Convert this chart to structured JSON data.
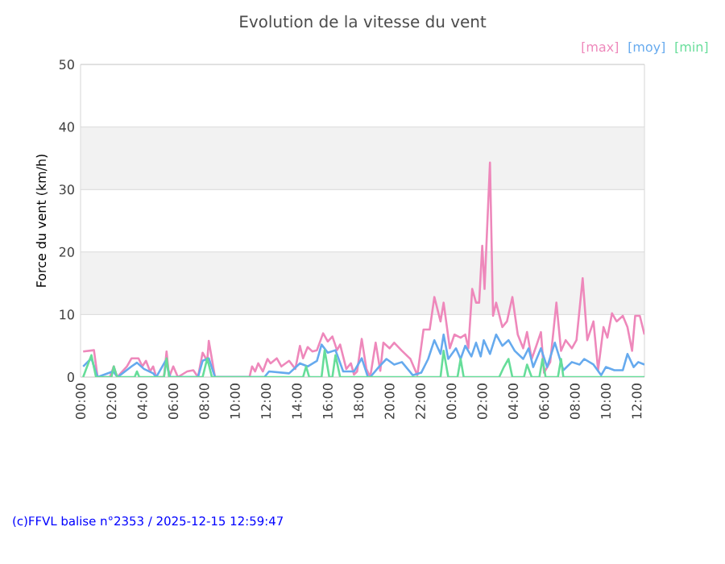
{
  "chart_data": {
    "type": "line",
    "title": "Evolution de la vitesse du vent",
    "ylabel": "Force du vent (km/h)",
    "annotations": [
      "(c)FFVL balise n°2353 / 2025-12-15 12:59:47"
    ],
    "xlim": [
      "2025-12-14T00:00",
      "2025-12-15T12:30"
    ],
    "ylim": [
      0,
      50
    ],
    "yticks": [
      0,
      10,
      20,
      30,
      40,
      50
    ],
    "xticks": [
      {
        "value": "2025-12-14T00:00",
        "label": "00:00"
      },
      {
        "value": "2025-12-14T02:00",
        "label": "02:00"
      },
      {
        "value": "2025-12-14T04:00",
        "label": "04:00"
      },
      {
        "value": "2025-12-14T06:00",
        "label": "06:00"
      },
      {
        "value": "2025-12-14T08:00",
        "label": "08:00"
      },
      {
        "value": "2025-12-14T10:00",
        "label": "10:00"
      },
      {
        "value": "2025-12-14T12:00",
        "label": "12:00"
      },
      {
        "value": "2025-12-14T14:00",
        "label": "14:00"
      },
      {
        "value": "2025-12-14T16:00",
        "label": "16:00"
      },
      {
        "value": "2025-12-14T18:00",
        "label": "18:00"
      },
      {
        "value": "2025-12-14T20:00",
        "label": "20:00"
      },
      {
        "value": "2025-12-14T22:00",
        "label": "22:00"
      },
      {
        "value": "2025-12-15T00:00",
        "label": "00:00"
      },
      {
        "value": "2025-12-15T02:00",
        "label": "02:00"
      },
      {
        "value": "2025-12-15T04:00",
        "label": "04:00"
      },
      {
        "value": "2025-12-15T06:00",
        "label": "06:00"
      },
      {
        "value": "2025-12-15T08:00",
        "label": "08:00"
      },
      {
        "value": "2025-12-15T10:00",
        "label": "10:00"
      },
      {
        "value": "2025-12-15T12:00",
        "label": "12:00"
      }
    ],
    "grid": "y",
    "legend": "top right",
    "bands": [
      {
        "axis": "y",
        "from": 10,
        "to": 20,
        "color": "#f2f2f2"
      },
      {
        "axis": "y",
        "from": 30,
        "to": 40,
        "color": "#f2f2f2"
      }
    ],
    "series": [
      {
        "name": "[max]",
        "color": "#ee88bb",
        "x": [
          "2025-12-14T00:10",
          "2025-12-14T00:52",
          "2025-12-14T01:06",
          "2025-12-14T01:54",
          "2025-12-14T02:09",
          "2025-12-14T02:22",
          "2025-12-14T02:42",
          "2025-12-14T03:00",
          "2025-12-14T03:18",
          "2025-12-14T03:45",
          "2025-12-14T04:00",
          "2025-12-14T04:14",
          "2025-12-14T04:30",
          "2025-12-14T04:42",
          "2025-12-14T04:54",
          "2025-12-14T05:24",
          "2025-12-14T05:34",
          "2025-12-14T05:44",
          "2025-12-14T06:00",
          "2025-12-14T06:18",
          "2025-12-14T06:54",
          "2025-12-14T07:18",
          "2025-12-14T07:36",
          "2025-12-14T07:54",
          "2025-12-14T08:12",
          "2025-12-14T08:18",
          "2025-12-14T08:42",
          "2025-12-14T10:56",
          "2025-12-14T11:06",
          "2025-12-14T11:18",
          "2025-12-14T11:30",
          "2025-12-14T11:48",
          "2025-12-14T12:06",
          "2025-12-14T12:18",
          "2025-12-14T12:42",
          "2025-12-14T13:00",
          "2025-12-14T13:30",
          "2025-12-14T13:54",
          "2025-12-14T14:12",
          "2025-12-14T14:24",
          "2025-12-14T14:42",
          "2025-12-14T15:00",
          "2025-12-14T15:18",
          "2025-12-14T15:42",
          "2025-12-14T16:00",
          "2025-12-14T16:18",
          "2025-12-14T16:36",
          "2025-12-14T16:48",
          "2025-12-14T17:12",
          "2025-12-14T17:30",
          "2025-12-14T17:42",
          "2025-12-14T17:54",
          "2025-12-14T18:12",
          "2025-12-14T18:30",
          "2025-12-14T18:45",
          "2025-12-14T19:06",
          "2025-12-14T19:24",
          "2025-12-14T19:36",
          "2025-12-14T20:00",
          "2025-12-14T20:18",
          "2025-12-14T20:48",
          "2025-12-14T21:21",
          "2025-12-14T21:48",
          "2025-12-14T22:12",
          "2025-12-14T22:36",
          "2025-12-14T22:54",
          "2025-12-14T23:18",
          "2025-12-14T23:30",
          "2025-12-14T23:54",
          "2025-12-15T00:12",
          "2025-12-15T00:36",
          "2025-12-15T00:54",
          "2025-12-15T01:06",
          "2025-12-15T01:21",
          "2025-12-15T01:36",
          "2025-12-15T01:48",
          "2025-12-15T02:00",
          "2025-12-15T02:09",
          "2025-12-15T02:30",
          "2025-12-15T02:42",
          "2025-12-15T02:54",
          "2025-12-15T03:18",
          "2025-12-15T03:36",
          "2025-12-15T03:57",
          "2025-12-15T04:18",
          "2025-12-15T04:39",
          "2025-12-15T04:54",
          "2025-12-15T05:12",
          "2025-12-15T05:30",
          "2025-12-15T05:48",
          "2025-12-15T06:00",
          "2025-12-15T06:24",
          "2025-12-15T06:48",
          "2025-12-15T07:06",
          "2025-12-15T07:24",
          "2025-12-15T07:48",
          "2025-12-15T08:06",
          "2025-12-15T08:30",
          "2025-12-15T08:48",
          "2025-12-15T09:12",
          "2025-12-15T09:30",
          "2025-12-15T09:51",
          "2025-12-15T10:06",
          "2025-12-15T10:24",
          "2025-12-15T10:42",
          "2025-12-15T11:06",
          "2025-12-15T11:24",
          "2025-12-15T11:42",
          "2025-12-15T11:54",
          "2025-12-15T12:12",
          "2025-12-15T12:30"
        ],
        "values": [
          4.1,
          4.3,
          0,
          0,
          1.7,
          0,
          0.9,
          1.7,
          3,
          3,
          1.7,
          2.6,
          0.9,
          1.7,
          0,
          0,
          4.1,
          0,
          1.7,
          0,
          0.9,
          1.1,
          0,
          3.9,
          2.6,
          5.8,
          0,
          0,
          1.7,
          0.9,
          2.2,
          0.9,
          2.9,
          2.2,
          3,
          1.7,
          2.6,
          1.3,
          5,
          3,
          4.8,
          4.1,
          4.3,
          7,
          5.7,
          6.5,
          4.3,
          5.2,
          1.3,
          2.2,
          0.4,
          0.9,
          6.1,
          1.3,
          0,
          5.5,
          1,
          5.5,
          4.6,
          5.5,
          4.2,
          2.9,
          0.3,
          7.6,
          7.6,
          12.8,
          8.9,
          11.9,
          4.6,
          6.8,
          6.3,
          6.8,
          4.6,
          14.1,
          11.9,
          11.9,
          21,
          14.1,
          34.3,
          9.8,
          11.9,
          8,
          8.9,
          12.8,
          6.8,
          4.6,
          7.2,
          2.9,
          5,
          7.2,
          0.7,
          2.4,
          11.9,
          4.2,
          5.9,
          4.6,
          5.9,
          15.8,
          5.9,
          8.9,
          1.1,
          8,
          6.3,
          10.2,
          8.9,
          9.8,
          8,
          4.2,
          9.8,
          9.8,
          6.8
        ]
      },
      {
        "name": "[moy]",
        "color": "#66aaee",
        "x": [
          "2025-12-14T00:10",
          "2025-12-14T00:42",
          "2025-12-14T01:06",
          "2025-12-14T02:06",
          "2025-12-14T02:24",
          "2025-12-14T03:18",
          "2025-12-14T03:39",
          "2025-12-14T04:06",
          "2025-12-14T04:42",
          "2025-12-14T04:54",
          "2025-12-14T05:30",
          "2025-12-14T05:48",
          "2025-12-14T07:36",
          "2025-12-14T07:54",
          "2025-12-14T08:18",
          "2025-12-14T08:42",
          "2025-12-14T11:54",
          "2025-12-14T12:12",
          "2025-12-14T13:30",
          "2025-12-14T14:12",
          "2025-12-14T14:42",
          "2025-12-14T15:18",
          "2025-12-14T15:36",
          "2025-12-14T16:00",
          "2025-12-14T16:30",
          "2025-12-14T17:00",
          "2025-12-14T17:42",
          "2025-12-14T18:12",
          "2025-12-14T18:36",
          "2025-12-14T18:45",
          "2025-12-14T19:18",
          "2025-12-14T19:48",
          "2025-12-14T20:18",
          "2025-12-14T20:48",
          "2025-12-14T21:30",
          "2025-12-14T22:03",
          "2025-12-14T22:30",
          "2025-12-14T22:54",
          "2025-12-14T23:18",
          "2025-12-14T23:30",
          "2025-12-14T23:48",
          "2025-12-15T00:18",
          "2025-12-15T00:36",
          "2025-12-15T00:54",
          "2025-12-15T01:18",
          "2025-12-15T01:36",
          "2025-12-15T01:54",
          "2025-12-15T02:06",
          "2025-12-15T02:30",
          "2025-12-15T02:54",
          "2025-12-15T03:18",
          "2025-12-15T03:42",
          "2025-12-15T04:06",
          "2025-12-15T04:39",
          "2025-12-15T05:00",
          "2025-12-15T05:18",
          "2025-12-15T05:48",
          "2025-12-15T06:12",
          "2025-12-15T06:42",
          "2025-12-15T07:15",
          "2025-12-15T07:48",
          "2025-12-15T08:18",
          "2025-12-15T08:36",
          "2025-12-15T09:12",
          "2025-12-15T09:42",
          "2025-12-15T10:00",
          "2025-12-15T10:33",
          "2025-12-15T11:06",
          "2025-12-15T11:24",
          "2025-12-15T11:48",
          "2025-12-15T12:06",
          "2025-12-15T12:30"
        ],
        "values": [
          1.7,
          3,
          0,
          0.9,
          0,
          1.7,
          2.3,
          1.3,
          0.6,
          0,
          2.6,
          0,
          0,
          2.6,
          3,
          0,
          0,
          0.9,
          0.6,
          2.2,
          1.7,
          2.6,
          5.2,
          3.9,
          4.3,
          0.9,
          0.9,
          3,
          0,
          0,
          1.6,
          2.9,
          2,
          2.4,
          0.3,
          0.7,
          2.9,
          5.9,
          3.7,
          6.8,
          2.9,
          4.6,
          2.9,
          5,
          3.3,
          5.5,
          3.3,
          5.9,
          3.7,
          6.8,
          5,
          5.9,
          4.2,
          2.9,
          4.6,
          1.6,
          4.6,
          1.6,
          5.5,
          1.1,
          2.4,
          2,
          2.9,
          2,
          0.3,
          1.6,
          1.1,
          1.1,
          3.7,
          1.6,
          2.4,
          2
        ]
      },
      {
        "name": "[min]",
        "color": "#66dd99",
        "x": [
          "2025-12-14T00:10",
          "2025-12-14T00:42",
          "2025-12-14T01:00",
          "2025-12-14T02:00",
          "2025-12-14T02:09",
          "2025-12-14T02:22",
          "2025-12-14T03:30",
          "2025-12-14T03:39",
          "2025-12-14T03:48",
          "2025-12-14T05:24",
          "2025-12-14T05:34",
          "2025-12-14T05:44",
          "2025-12-14T07:54",
          "2025-12-14T08:12",
          "2025-12-14T08:30",
          "2025-12-14T14:24",
          "2025-12-14T14:36",
          "2025-12-14T14:48",
          "2025-12-14T15:36",
          "2025-12-14T15:48",
          "2025-12-14T16:06",
          "2025-12-14T16:18",
          "2025-12-14T16:30",
          "2025-12-14T16:48",
          "2025-12-14T23:18",
          "2025-12-14T23:30",
          "2025-12-14T23:48",
          "2025-12-15T00:24",
          "2025-12-15T00:36",
          "2025-12-15T00:48",
          "2025-12-15T03:06",
          "2025-12-15T03:24",
          "2025-12-15T03:42",
          "2025-12-15T03:57",
          "2025-12-15T04:42",
          "2025-12-15T04:54",
          "2025-12-15T05:12",
          "2025-12-15T05:42",
          "2025-12-15T05:54",
          "2025-12-15T06:06",
          "2025-12-15T06:54",
          "2025-12-15T07:06",
          "2025-12-15T07:15",
          "2025-12-15T12:30"
        ],
        "values": [
          0,
          3.5,
          0,
          0,
          1.7,
          0,
          0,
          0.9,
          0,
          0,
          3,
          0,
          0,
          3,
          0,
          0,
          1.7,
          0,
          0,
          4.3,
          0,
          0,
          3.5,
          0,
          0,
          4.2,
          0,
          0,
          2.9,
          0,
          0,
          1.6,
          2.9,
          0,
          0,
          2,
          0,
          0,
          2.9,
          0,
          0,
          2.9,
          0,
          0
        ]
      }
    ]
  }
}
